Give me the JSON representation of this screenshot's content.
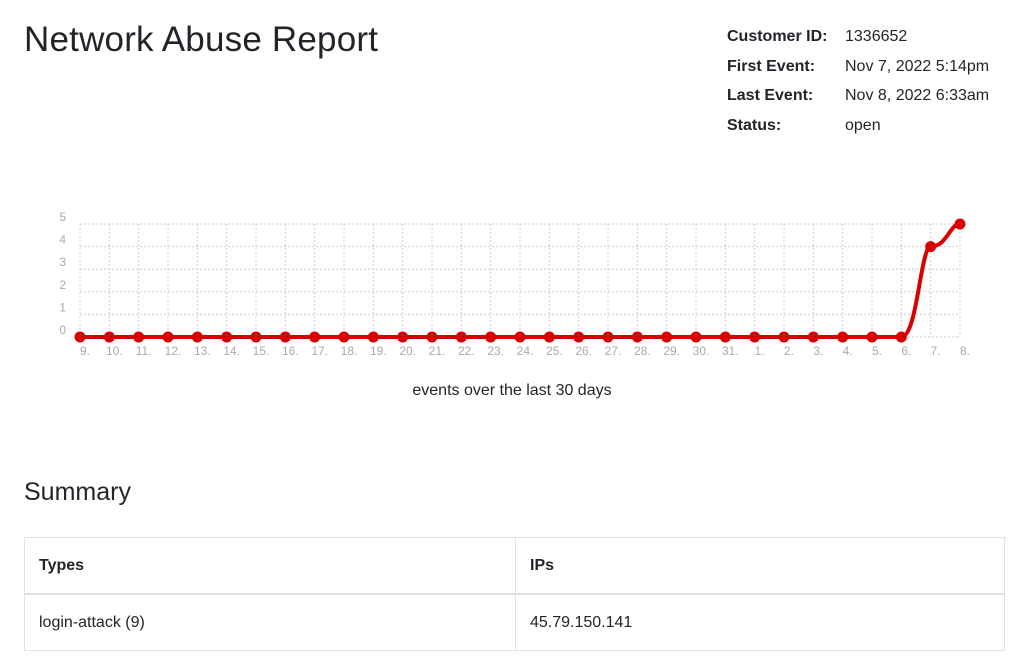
{
  "header": {
    "title": "Network Abuse Report"
  },
  "meta": {
    "customer_id_label": "Customer ID:",
    "customer_id": "1336652",
    "first_event_label": "First Event:",
    "first_event": "Nov 7, 2022 5:14pm",
    "last_event_label": "Last Event:",
    "last_event": "Nov 8, 2022 6:33am",
    "status_label": "Status:",
    "status": "open"
  },
  "chart_data": {
    "type": "line",
    "x": [
      "9.",
      "10.",
      "11.",
      "12.",
      "13.",
      "14.",
      "15.",
      "16.",
      "17.",
      "18.",
      "19.",
      "20.",
      "21.",
      "22.",
      "23.",
      "24.",
      "25.",
      "26.",
      "27.",
      "28.",
      "29.",
      "30.",
      "31.",
      "1.",
      "2.",
      "3.",
      "4.",
      "5.",
      "6.",
      "7.",
      "8."
    ],
    "series": [
      {
        "values": [
          0,
          0,
          0,
          0,
          0,
          0,
          0,
          0,
          0,
          0,
          0,
          0,
          0,
          0,
          0,
          0,
          0,
          0,
          0,
          0,
          0,
          0,
          0,
          0,
          0,
          0,
          0,
          0,
          0,
          4,
          5
        ]
      }
    ],
    "yticks": [
      0,
      1,
      2,
      3,
      4,
      5
    ],
    "ylim": [
      0,
      5
    ],
    "grid": true,
    "line_color": "#d90000",
    "grid_color": "#cccccc",
    "tick_color": "#aaaaaa",
    "caption": "events over the last 30 days"
  },
  "summary": {
    "title": "Summary",
    "headers": [
      "Types",
      "IPs"
    ],
    "rows": [
      [
        "login-attack (9)",
        "45.79.150.141"
      ]
    ]
  }
}
